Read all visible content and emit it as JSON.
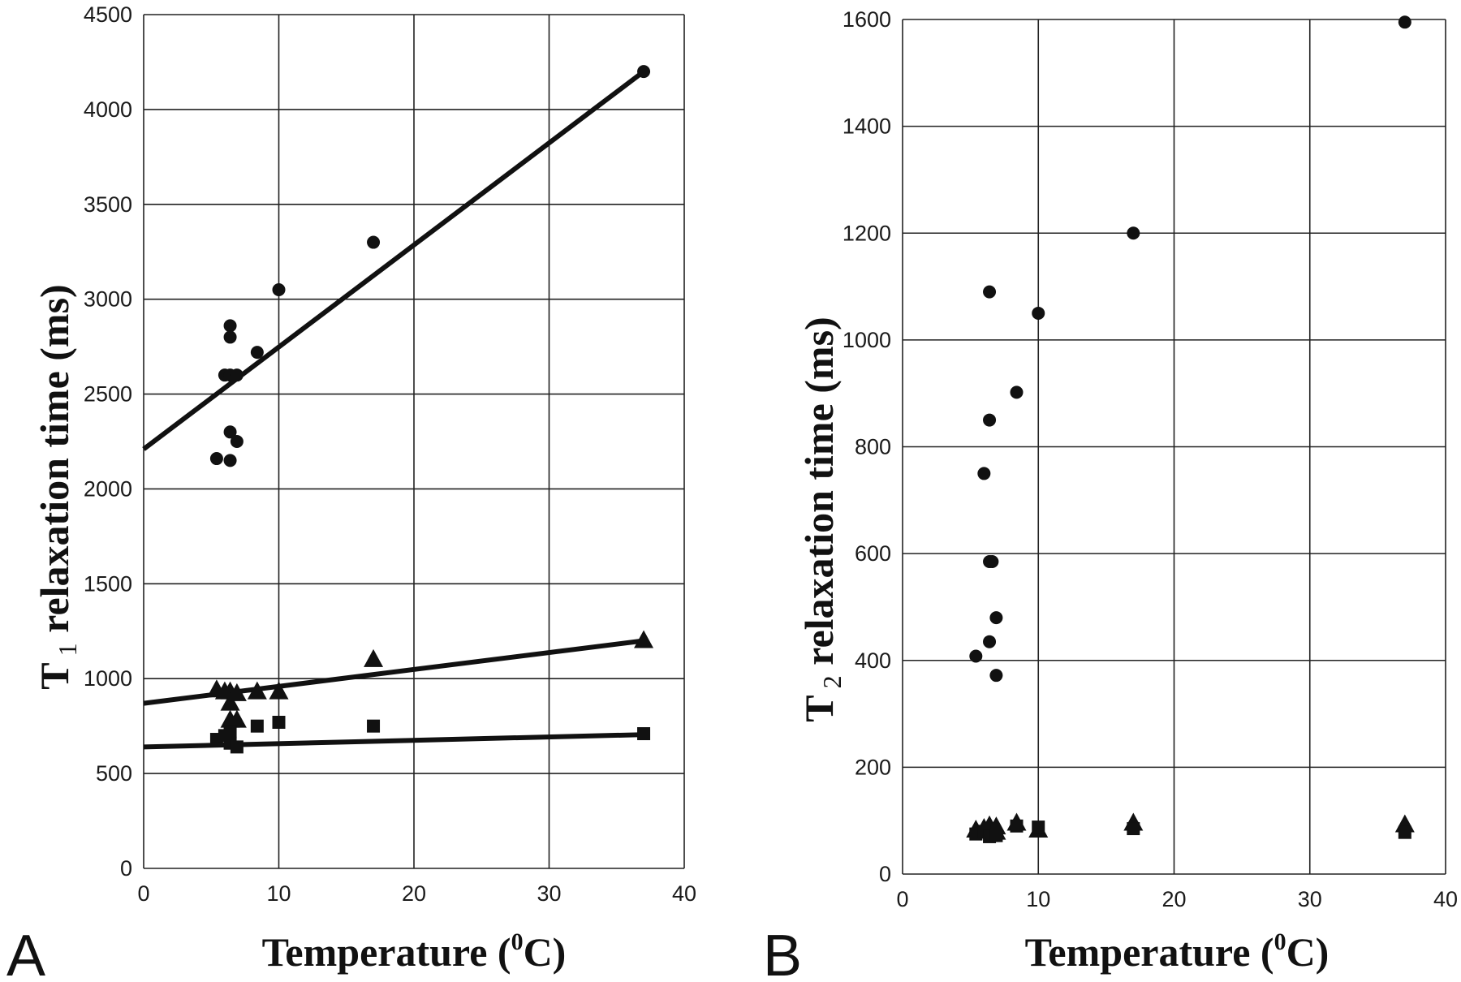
{
  "chart_data": [
    {
      "type": "scatter",
      "panel_label": "A",
      "xlabel": "Temperature (⁰C)",
      "xlabel_parts": {
        "pre": "Temperature (",
        "sup": "0",
        "post": "C)"
      },
      "ylabel": "T1 relaxation time (ms)",
      "ylabel_parts": {
        "main": "T",
        "sub": "1",
        "rest": " relaxation time (ms)"
      },
      "xlim": [
        0,
        40
      ],
      "ylim": [
        0,
        4500
      ],
      "xticks": [
        0,
        10,
        20,
        30,
        40
      ],
      "yticks": [
        0,
        500,
        1000,
        1500,
        2000,
        2500,
        3000,
        3500,
        4000,
        4500
      ],
      "grid": true,
      "legend": "none",
      "series": [
        {
          "marker": "circle",
          "points": [
            [
              5.4,
              2160
            ],
            [
              6.0,
              2600
            ],
            [
              6.4,
              2600
            ],
            [
              6.4,
              2860
            ],
            [
              6.4,
              2800
            ],
            [
              6.4,
              2300
            ],
            [
              6.4,
              2150
            ],
            [
              6.9,
              2250
            ],
            [
              6.9,
              2600
            ],
            [
              8.4,
              2720
            ],
            [
              10,
              3050
            ],
            [
              17,
              3300
            ],
            [
              37,
              4200
            ]
          ],
          "trendline": {
            "x": [
              0,
              37
            ],
            "y": [
              2210,
              4200
            ]
          }
        },
        {
          "marker": "triangle",
          "points": [
            [
              5.4,
              940
            ],
            [
              6.0,
              930
            ],
            [
              6.4,
              930
            ],
            [
              6.4,
              870
            ],
            [
              6.4,
              780
            ],
            [
              6.9,
              920
            ],
            [
              6.9,
              780
            ],
            [
              8.4,
              930
            ],
            [
              10,
              930
            ],
            [
              17,
              1100
            ],
            [
              37,
              1200
            ]
          ],
          "trendline": {
            "x": [
              0,
              37
            ],
            "y": [
              870,
              1200
            ]
          }
        },
        {
          "marker": "square",
          "points": [
            [
              5.4,
              680
            ],
            [
              6.0,
              700
            ],
            [
              6.4,
              720
            ],
            [
              6.4,
              660
            ],
            [
              6.9,
              640
            ],
            [
              8.4,
              750
            ],
            [
              10,
              770
            ],
            [
              17,
              750
            ],
            [
              37,
              710
            ]
          ],
          "trendline": {
            "x": [
              0,
              37
            ],
            "y": [
              640,
              705
            ]
          }
        }
      ]
    },
    {
      "type": "scatter",
      "panel_label": "B",
      "xlabel": "Temperature (⁰C)",
      "xlabel_parts": {
        "pre": "Temperature (",
        "sup": "0",
        "post": "C)"
      },
      "ylabel": "T2 relaxation time (ms)",
      "ylabel_parts": {
        "main": "T",
        "sub": "2",
        "rest": " relaxation time (ms)"
      },
      "xlim": [
        0,
        40
      ],
      "ylim": [
        0,
        1600
      ],
      "xticks": [
        0,
        10,
        20,
        30,
        40
      ],
      "yticks": [
        0,
        200,
        400,
        600,
        800,
        1000,
        1200,
        1400,
        1600
      ],
      "grid": true,
      "legend": "none",
      "series": [
        {
          "marker": "circle",
          "points": [
            [
              5.4,
              408
            ],
            [
              6.0,
              750
            ],
            [
              6.4,
              585
            ],
            [
              6.6,
              585
            ],
            [
              6.4,
              850
            ],
            [
              6.4,
              1090
            ],
            [
              6.4,
              435
            ],
            [
              6.9,
              480
            ],
            [
              6.9,
              372
            ],
            [
              8.4,
              902
            ],
            [
              10,
              1050
            ],
            [
              17,
              1200
            ],
            [
              37,
              1595
            ]
          ]
        },
        {
          "marker": "triangle",
          "points": [
            [
              5.4,
              82
            ],
            [
              6.0,
              85
            ],
            [
              6.4,
              80
            ],
            [
              6.4,
              90
            ],
            [
              6.9,
              78
            ],
            [
              6.9,
              88
            ],
            [
              8.4,
              95
            ],
            [
              10,
              82
            ],
            [
              17,
              95
            ],
            [
              37,
              92
            ]
          ]
        },
        {
          "marker": "square",
          "points": [
            [
              5.4,
              75
            ],
            [
              6.0,
              80
            ],
            [
              6.4,
              70
            ],
            [
              6.9,
              72
            ],
            [
              8.4,
              90
            ],
            [
              10,
              88
            ],
            [
              17,
              85
            ],
            [
              37,
              78
            ]
          ]
        }
      ]
    }
  ]
}
